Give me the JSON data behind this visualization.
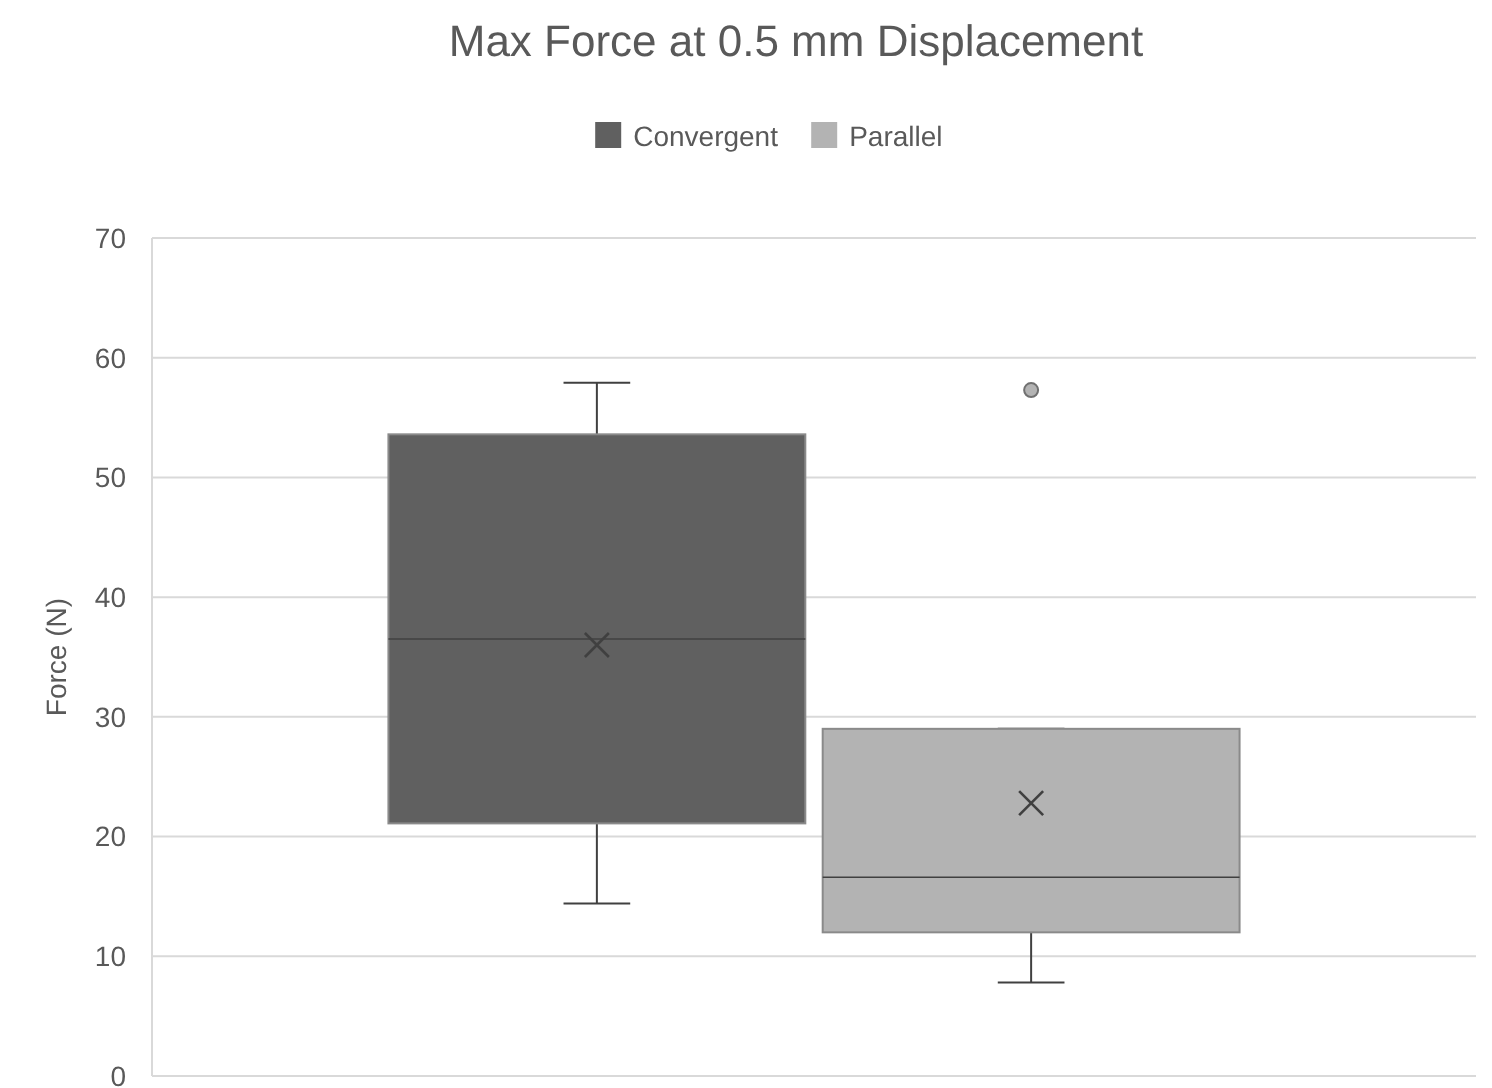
{
  "chart_data": {
    "type": "box",
    "title": "Max Force at 0.5 mm Displacement",
    "ylabel": "Force (N)",
    "categories": [
      null
    ],
    "series": [
      {
        "name": "Convergent",
        "color": "#606060",
        "boxes": [
          {
            "low": 14.4,
            "q1": 21.1,
            "median": 36.5,
            "q3": 53.6,
            "high": 57.9,
            "mean": 36
          }
        ]
      },
      {
        "name": "Parallel",
        "color": "#b3b3b3",
        "boxes": [
          {
            "low": 7.8,
            "q1": 12,
            "median": 16.6,
            "q3": 29,
            "high": 29,
            "mean": 22.8,
            "outliers": [
              57.3
            ]
          }
        ]
      }
    ],
    "ylim": [
      0,
      70
    ],
    "yticks": [
      0,
      10,
      20,
      30,
      40,
      50,
      60,
      70
    ],
    "grid": "y",
    "legend": "top"
  }
}
